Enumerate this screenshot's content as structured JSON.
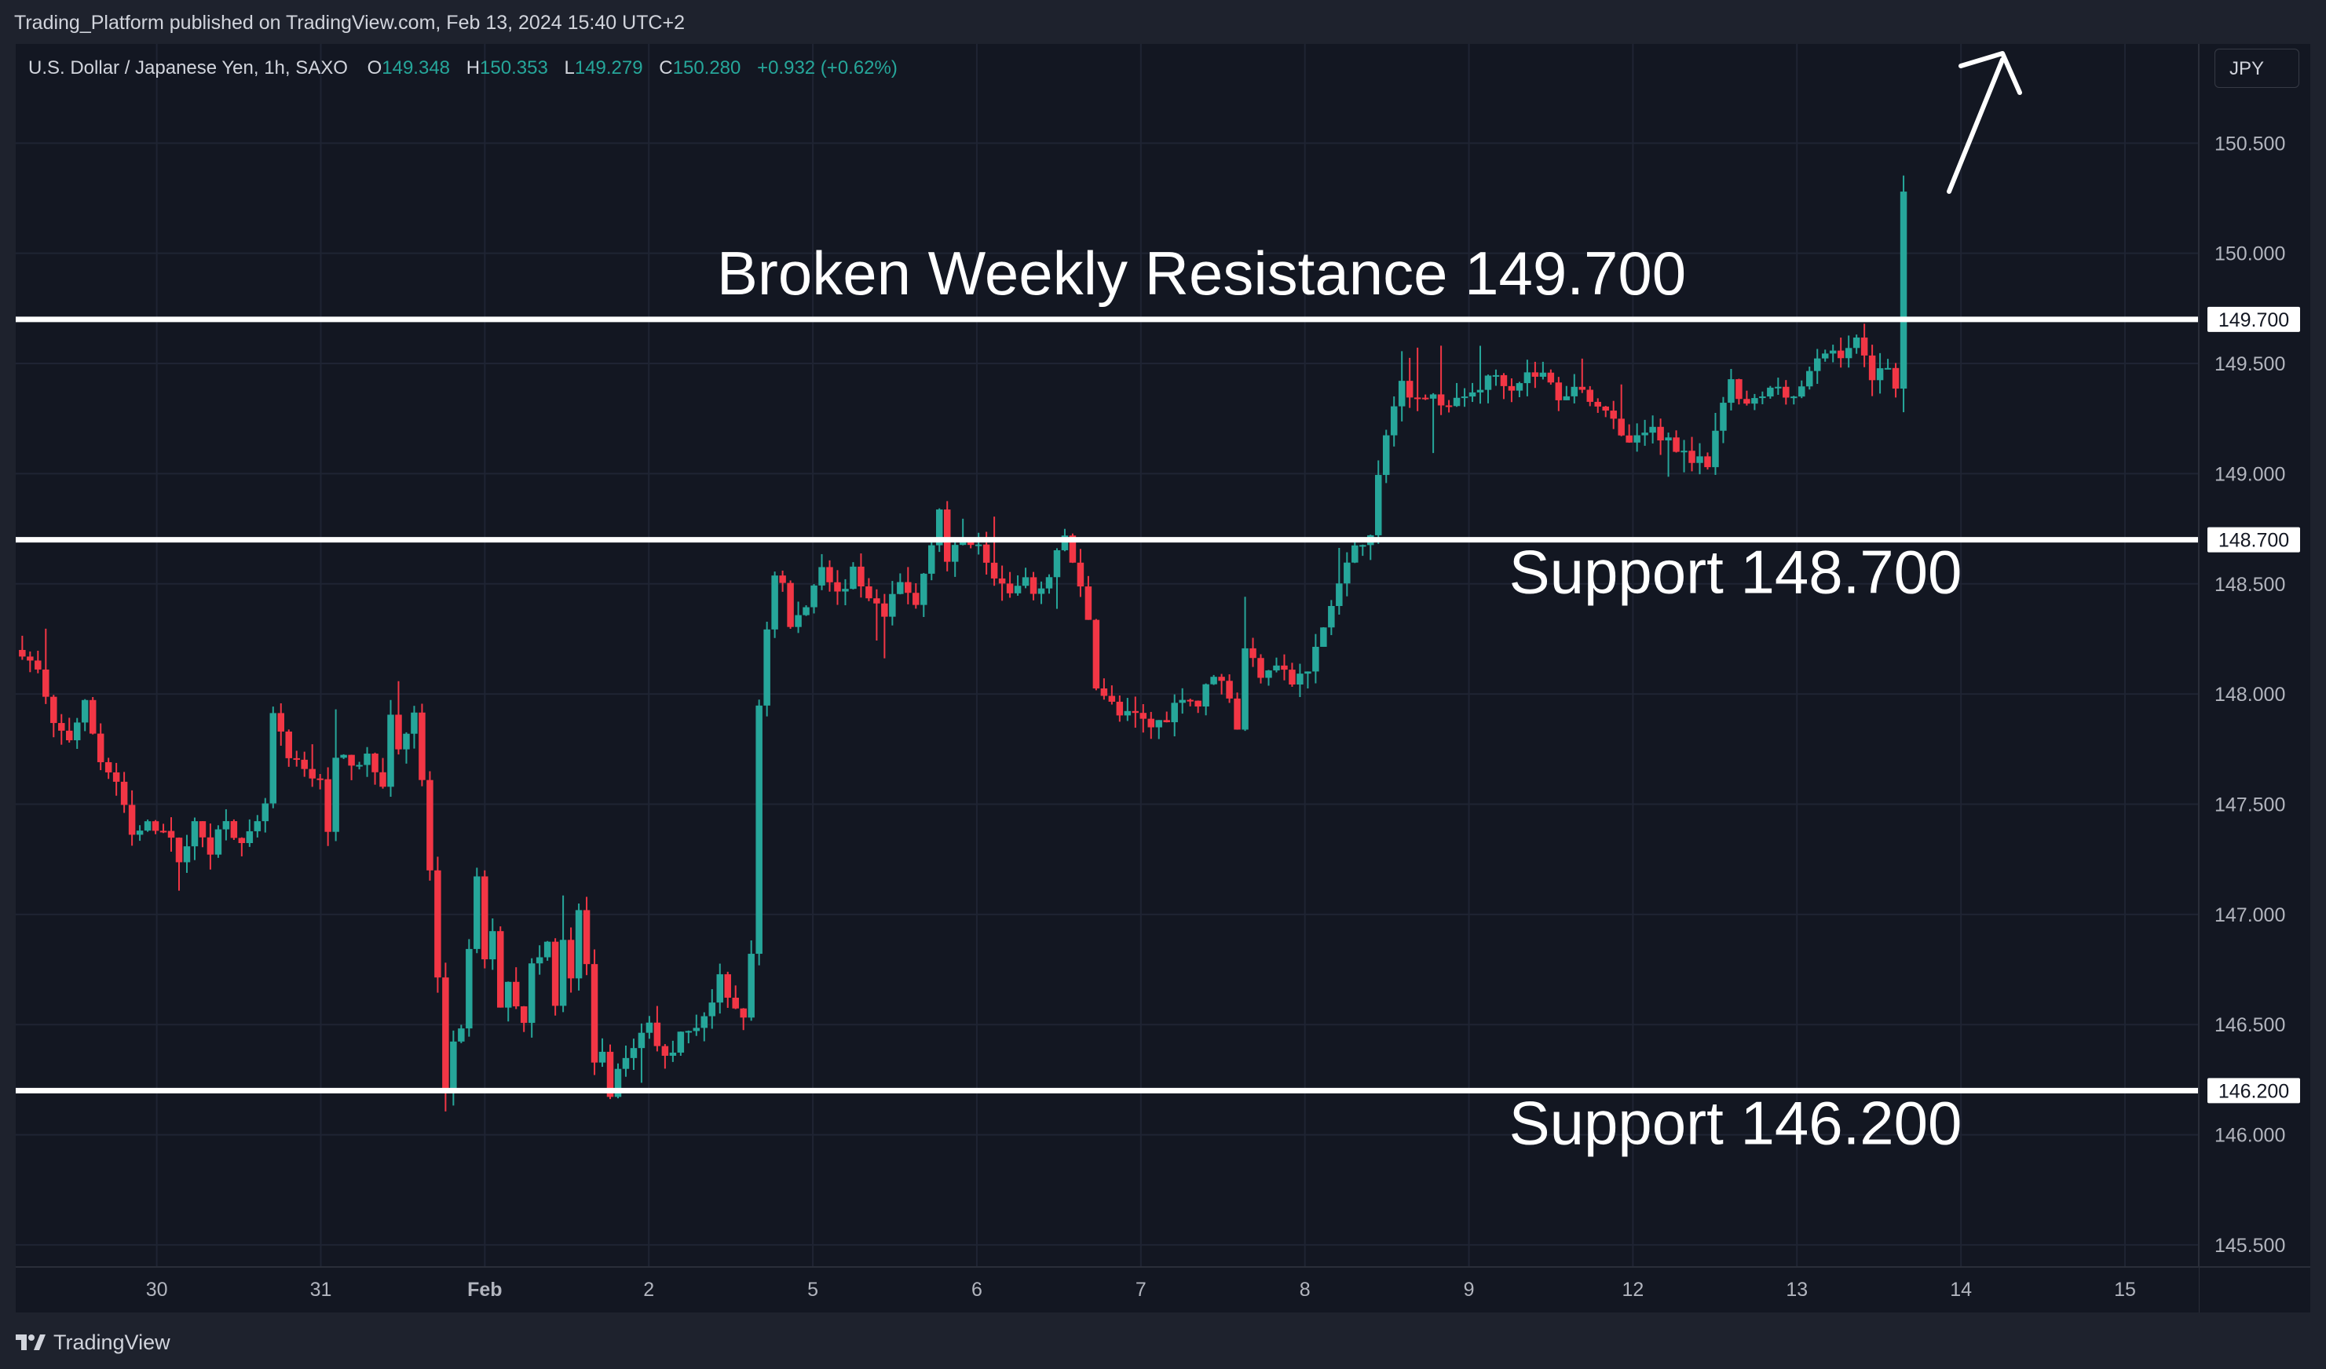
{
  "header": {
    "publisher_text": "Trading_Platform published on TradingView.com, Feb 13, 2024 15:40 UTC+2"
  },
  "legend": {
    "symbol": "U.S. Dollar / Japanese Yen, 1h, SAXO",
    "open_label": "O",
    "open_value": "149.348",
    "high_label": "H",
    "high_value": "150.353",
    "low_label": "L",
    "low_value": "149.279",
    "close_label": "C",
    "close_value": "150.280",
    "change": "+0.932 (+0.62%)"
  },
  "currency_button": "JPY",
  "footer": {
    "logo_text": "TradingView"
  },
  "colors": {
    "up": "#26a69a",
    "down": "#f23645",
    "background": "#131722",
    "grid": "#1f2433",
    "axis_text": "#b2b5be",
    "annotation": "#ffffff"
  },
  "chart_data": {
    "type": "candlestick",
    "instrument": "USD/JPY",
    "timeframe": "1h",
    "y_axis": {
      "min": 145.4,
      "max": 150.95,
      "ticks": [
        "145.500",
        "146.000",
        "146.500",
        "147.000",
        "147.500",
        "148.000",
        "148.500",
        "149.000",
        "149.500",
        "150.000",
        "150.500"
      ]
    },
    "x_ticks": [
      {
        "label": "30",
        "x": 0.5
      },
      {
        "label": "31",
        "x": 1.5
      },
      {
        "label": "Feb",
        "x": 2.5
      },
      {
        "label": "2",
        "x": 3.5
      },
      {
        "label": "5",
        "x": 4.5
      },
      {
        "label": "6",
        "x": 5.5
      },
      {
        "label": "7",
        "x": 6.5
      },
      {
        "label": "8",
        "x": 7.5
      },
      {
        "label": "9",
        "x": 8.5
      },
      {
        "label": "12",
        "x": 9.5
      },
      {
        "label": "13",
        "x": 10.5
      },
      {
        "label": "14",
        "x": 11.5
      },
      {
        "label": "15",
        "x": 12.5
      }
    ],
    "x_range": [
      -0.36,
      12.95
    ],
    "levels": [
      {
        "value": 149.7,
        "label": "149.700",
        "annotation": "Broken Weekly Resistance 149.700",
        "annotation_position": "above"
      },
      {
        "value": 148.7,
        "label": "148.700",
        "annotation": "Support 148.700",
        "annotation_position": "below"
      },
      {
        "value": 146.2,
        "label": "146.200",
        "annotation": "Support 146.200",
        "annotation_position": "below"
      }
    ],
    "price_path": [
      [
        0,
        148.2
      ],
      [
        2,
        148.1
      ],
      [
        4,
        147.85
      ],
      [
        6,
        147.8
      ],
      [
        8,
        147.95
      ],
      [
        10,
        147.7
      ],
      [
        12,
        147.6
      ],
      [
        14,
        147.35
      ],
      [
        16,
        147.4
      ],
      [
        18,
        147.4
      ],
      [
        20,
        147.25
      ],
      [
        22,
        147.4
      ],
      [
        24,
        147.3
      ],
      [
        26,
        147.45
      ],
      [
        28,
        147.3
      ],
      [
        30,
        147.4
      ],
      [
        31,
        147.5
      ],
      [
        32,
        147.9
      ],
      [
        34,
        147.7
      ],
      [
        36,
        147.65
      ],
      [
        38,
        147.6
      ],
      [
        39,
        147.4
      ],
      [
        40,
        147.7
      ],
      [
        42,
        147.7
      ],
      [
        44,
        147.7
      ],
      [
        46,
        147.6
      ],
      [
        47,
        147.9
      ],
      [
        48,
        147.75
      ],
      [
        50,
        147.9
      ],
      [
        51,
        147.6
      ],
      [
        52,
        147.2
      ],
      [
        53,
        146.7
      ],
      [
        54,
        146.2
      ],
      [
        55,
        146.4
      ],
      [
        56,
        146.5
      ],
      [
        58,
        147.15
      ],
      [
        59,
        146.8
      ],
      [
        60,
        146.9
      ],
      [
        61,
        146.6
      ],
      [
        62,
        146.7
      ],
      [
        64,
        146.5
      ],
      [
        65,
        146.8
      ],
      [
        66,
        146.8
      ],
      [
        67,
        146.9
      ],
      [
        68,
        146.6
      ],
      [
        69,
        146.9
      ],
      [
        70,
        146.7
      ],
      [
        71,
        147.0
      ],
      [
        72,
        146.75
      ],
      [
        73,
        146.35
      ],
      [
        74,
        146.35
      ],
      [
        75,
        146.2
      ],
      [
        76,
        146.3
      ],
      [
        78,
        146.4
      ],
      [
        80,
        146.5
      ],
      [
        82,
        146.35
      ],
      [
        84,
        146.45
      ],
      [
        86,
        146.5
      ],
      [
        88,
        146.6
      ],
      [
        89,
        146.7
      ],
      [
        90,
        146.6
      ],
      [
        92,
        146.55
      ],
      [
        93,
        146.8
      ],
      [
        94,
        147.95
      ],
      [
        95,
        148.3
      ],
      [
        96,
        148.55
      ],
      [
        97,
        148.5
      ],
      [
        98,
        148.3
      ],
      [
        100,
        148.4
      ],
      [
        102,
        148.6
      ],
      [
        104,
        148.45
      ],
      [
        106,
        148.55
      ],
      [
        108,
        148.45
      ],
      [
        110,
        148.35
      ],
      [
        112,
        148.5
      ],
      [
        114,
        148.4
      ],
      [
        116,
        148.7
      ],
      [
        117,
        148.85
      ],
      [
        118,
        148.6
      ],
      [
        120,
        148.7
      ],
      [
        122,
        148.7
      ],
      [
        124,
        148.55
      ],
      [
        126,
        148.45
      ],
      [
        128,
        148.5
      ],
      [
        130,
        148.45
      ],
      [
        132,
        148.65
      ],
      [
        133,
        148.7
      ],
      [
        134,
        148.6
      ],
      [
        136,
        148.35
      ],
      [
        137,
        148.05
      ],
      [
        138,
        148.0
      ],
      [
        140,
        147.9
      ],
      [
        142,
        147.9
      ],
      [
        144,
        147.85
      ],
      [
        146,
        147.9
      ],
      [
        148,
        148.0
      ],
      [
        150,
        147.95
      ],
      [
        152,
        148.1
      ],
      [
        154,
        148.0
      ],
      [
        155,
        147.85
      ],
      [
        156,
        148.2
      ],
      [
        158,
        148.1
      ],
      [
        160,
        148.15
      ],
      [
        162,
        148.05
      ],
      [
        164,
        148.1
      ],
      [
        166,
        148.3
      ],
      [
        168,
        148.5
      ],
      [
        170,
        148.65
      ],
      [
        172,
        148.75
      ],
      [
        174,
        149.2
      ],
      [
        176,
        149.4
      ],
      [
        178,
        149.35
      ],
      [
        180,
        149.35
      ],
      [
        182,
        149.3
      ],
      [
        184,
        149.35
      ],
      [
        186,
        149.4
      ],
      [
        188,
        149.45
      ],
      [
        190,
        149.4
      ],
      [
        192,
        149.45
      ],
      [
        194,
        149.45
      ],
      [
        196,
        149.35
      ],
      [
        198,
        149.4
      ],
      [
        200,
        149.35
      ],
      [
        202,
        149.3
      ],
      [
        204,
        149.15
      ],
      [
        206,
        149.15
      ],
      [
        208,
        149.2
      ],
      [
        210,
        149.15
      ],
      [
        212,
        149.1
      ],
      [
        214,
        149.05
      ],
      [
        215,
        149.0
      ],
      [
        216,
        149.2
      ],
      [
        218,
        149.4
      ],
      [
        220,
        149.3
      ],
      [
        222,
        149.35
      ],
      [
        224,
        149.4
      ],
      [
        226,
        149.35
      ],
      [
        228,
        149.45
      ],
      [
        230,
        149.55
      ],
      [
        232,
        149.55
      ],
      [
        234,
        149.6
      ],
      [
        236,
        149.45
      ],
      [
        238,
        149.5
      ],
      [
        239,
        149.4
      ],
      [
        240,
        150.3
      ]
    ]
  }
}
